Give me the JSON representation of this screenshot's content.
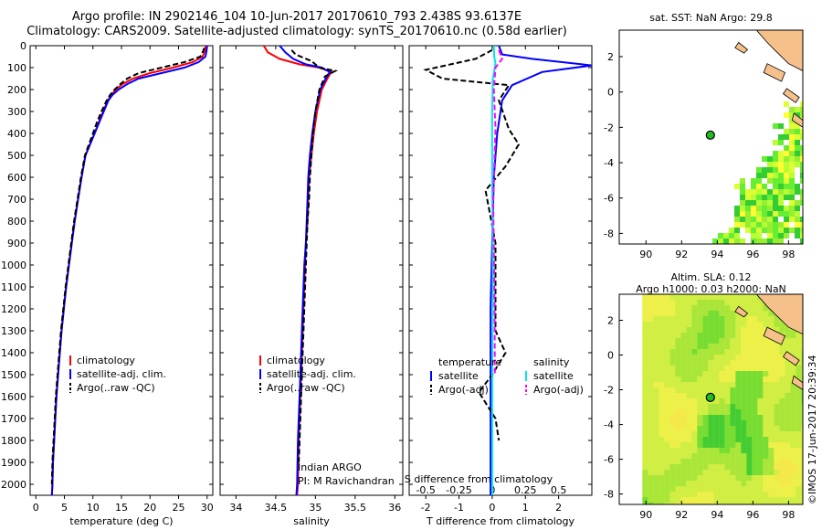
{
  "header": {
    "line1": "Argo profile: IN 2902146_104 10-Jun-2017 20170610_793 2.438S 93.6137E",
    "line2": "Climatology: CARS2009. Satellite-adjusted climatology: synTS_20170610.nc (0.58d earlier)"
  },
  "colors": {
    "climatology": "#ff0000",
    "satellite": "#0000ff",
    "argo": "#000000",
    "sal_satellite": "#00e5ee",
    "sal_argo": "#ff00ff",
    "land": "#f5c08a"
  },
  "chart_data": [
    {
      "type": "line",
      "name": "temperature",
      "xlabel": "temperature (deg C)",
      "ylabel": "",
      "xlim": [
        -1,
        31
      ],
      "ylim": [
        0,
        2050
      ],
      "y_inverted": true,
      "xticks": [
        0,
        5,
        10,
        15,
        20,
        25,
        30
      ],
      "yticks": [
        0,
        100,
        200,
        300,
        400,
        500,
        600,
        700,
        800,
        900,
        1000,
        1100,
        1200,
        1300,
        1400,
        1500,
        1600,
        1700,
        1800,
        1900,
        2000
      ],
      "legend": [
        "climatology",
        "satellite-adj. clim.",
        "Argo(..raw -QC)"
      ],
      "series": [
        {
          "name": "climatology",
          "color": "#ff0000",
          "dash": "",
          "points": [
            [
              29.8,
              0
            ],
            [
              29.6,
              25
            ],
            [
              29.2,
              50
            ],
            [
              27.5,
              75
            ],
            [
              24,
              100
            ],
            [
              20,
              125
            ],
            [
              17,
              150
            ],
            [
              15.2,
              175
            ],
            [
              14,
              200
            ],
            [
              13.2,
              225
            ],
            [
              12.6,
              250
            ],
            [
              11.8,
              300
            ],
            [
              11,
              350
            ],
            [
              10.3,
              400
            ],
            [
              9.5,
              450
            ],
            [
              8.7,
              500
            ],
            [
              8,
              600
            ],
            [
              7.4,
              700
            ],
            [
              6.8,
              800
            ],
            [
              6.3,
              900
            ],
            [
              5.8,
              1000
            ],
            [
              5.3,
              1100
            ],
            [
              4.9,
              1200
            ],
            [
              4.5,
              1300
            ],
            [
              4.2,
              1400
            ],
            [
              3.9,
              1500
            ],
            [
              3.6,
              1600
            ],
            [
              3.4,
              1700
            ],
            [
              3.2,
              1800
            ],
            [
              3,
              1900
            ],
            [
              2.9,
              2000
            ],
            [
              2.8,
              2050
            ]
          ]
        },
        {
          "name": "satellite-adj. clim.",
          "color": "#0000ff",
          "dash": "",
          "points": [
            [
              30,
              0
            ],
            [
              29.9,
              25
            ],
            [
              29.7,
              50
            ],
            [
              28.5,
              75
            ],
            [
              26,
              100
            ],
            [
              22,
              125
            ],
            [
              18,
              150
            ],
            [
              16,
              175
            ],
            [
              14.5,
              200
            ],
            [
              13.4,
              225
            ],
            [
              12.7,
              250
            ],
            [
              11.9,
              300
            ],
            [
              11.1,
              350
            ],
            [
              10.3,
              400
            ],
            [
              9.5,
              450
            ],
            [
              8.7,
              500
            ],
            [
              8,
              600
            ],
            [
              7.4,
              700
            ],
            [
              6.8,
              800
            ],
            [
              6.3,
              900
            ],
            [
              5.8,
              1000
            ],
            [
              5.3,
              1100
            ],
            [
              4.9,
              1200
            ],
            [
              4.5,
              1300
            ],
            [
              4.2,
              1400
            ],
            [
              3.9,
              1500
            ],
            [
              3.6,
              1600
            ],
            [
              3.4,
              1700
            ],
            [
              3.2,
              1800
            ],
            [
              3,
              1900
            ],
            [
              2.9,
              2000
            ],
            [
              2.8,
              2050
            ]
          ]
        },
        {
          "name": "Argo(..raw -QC)",
          "color": "#000000",
          "dash": "6,3",
          "points": [
            [
              29.5,
              10
            ],
            [
              29.3,
              25
            ],
            [
              28.8,
              50
            ],
            [
              26,
              75
            ],
            [
              22,
              100
            ],
            [
              18,
              125
            ],
            [
              16,
              150
            ],
            [
              14.8,
              175
            ],
            [
              13.8,
              200
            ],
            [
              13,
              225
            ],
            [
              12.4,
              250
            ],
            [
              11.5,
              300
            ],
            [
              10.7,
              350
            ],
            [
              10,
              400
            ],
            [
              9.3,
              450
            ],
            [
              8.6,
              500
            ],
            [
              7.9,
              600
            ],
            [
              7.3,
              700
            ],
            [
              6.7,
              800
            ],
            [
              6.2,
              900
            ],
            [
              5.7,
              1000
            ],
            [
              5.2,
              1100
            ],
            [
              4.8,
              1200
            ],
            [
              4.4,
              1300
            ],
            [
              4.1,
              1400
            ],
            [
              3.8,
              1500
            ],
            [
              3.5,
              1600
            ],
            [
              3.3,
              1700
            ],
            [
              3.1,
              1800
            ],
            [
              2.9,
              1900
            ],
            [
              2.8,
              2000
            ]
          ]
        }
      ]
    },
    {
      "type": "line",
      "name": "salinity",
      "xlabel": "salinity",
      "ylabel": "",
      "xlim": [
        33.8,
        36.1
      ],
      "ylim": [
        0,
        2050
      ],
      "y_inverted": true,
      "xticks": [
        34,
        34.5,
        35,
        35.5,
        36
      ],
      "xticklabels": [
        "34",
        "34.5",
        "35",
        "35.5",
        "36"
      ],
      "legend": [
        "climatology",
        "satellite-adj. clim.",
        "Argo(..raw -QC)"
      ],
      "annotation": [
        "Indian ARGO",
        "PI: M Ravichandran"
      ],
      "series": [
        {
          "name": "climatology",
          "color": "#ff0000",
          "dash": "",
          "points": [
            [
              34.35,
              0
            ],
            [
              34.4,
              30
            ],
            [
              34.55,
              60
            ],
            [
              34.8,
              85
            ],
            [
              35.05,
              100
            ],
            [
              35.2,
              120
            ],
            [
              35.15,
              150
            ],
            [
              35.08,
              200
            ],
            [
              35.02,
              300
            ],
            [
              34.98,
              400
            ],
            [
              34.95,
              500
            ],
            [
              34.92,
              600
            ],
            [
              34.91,
              700
            ],
            [
              34.9,
              800
            ],
            [
              34.88,
              900
            ],
            [
              34.87,
              1000
            ],
            [
              34.85,
              1200
            ],
            [
              34.83,
              1400
            ],
            [
              34.81,
              1600
            ],
            [
              34.79,
              1800
            ],
            [
              34.78,
              2000
            ],
            [
              34.77,
              2050
            ]
          ]
        },
        {
          "name": "satellite-adj. clim.",
          "color": "#0000ff",
          "dash": "",
          "points": [
            [
              34.55,
              0
            ],
            [
              34.62,
              30
            ],
            [
              34.72,
              60
            ],
            [
              34.88,
              85
            ],
            [
              35.08,
              100
            ],
            [
              35.18,
              120
            ],
            [
              35.13,
              150
            ],
            [
              35.06,
              200
            ],
            [
              35,
              300
            ],
            [
              34.96,
              400
            ],
            [
              34.93,
              500
            ],
            [
              34.91,
              600
            ],
            [
              34.9,
              700
            ],
            [
              34.89,
              800
            ],
            [
              34.88,
              900
            ],
            [
              34.86,
              1000
            ],
            [
              34.84,
              1200
            ],
            [
              34.82,
              1400
            ],
            [
              34.8,
              1600
            ],
            [
              34.78,
              1800
            ],
            [
              34.77,
              2000
            ],
            [
              34.76,
              2050
            ]
          ]
        },
        {
          "name": "Argo(..raw -QC)",
          "color": "#000000",
          "dash": "6,3",
          "points": [
            [
              34.7,
              20
            ],
            [
              34.75,
              40
            ],
            [
              34.95,
              70
            ],
            [
              35.05,
              100
            ],
            [
              35.25,
              115
            ],
            [
              35.12,
              140
            ],
            [
              35.05,
              200
            ],
            [
              35,
              300
            ],
            [
              34.97,
              400
            ],
            [
              34.95,
              500
            ],
            [
              34.93,
              600
            ],
            [
              34.92,
              700
            ],
            [
              34.9,
              800
            ],
            [
              34.89,
              900
            ],
            [
              34.88,
              1000
            ],
            [
              34.86,
              1200
            ],
            [
              34.84,
              1400
            ],
            [
              34.82,
              1600
            ],
            [
              34.8,
              1800
            ],
            [
              34.79,
              1900
            ]
          ]
        }
      ]
    },
    {
      "type": "line",
      "name": "difference",
      "xlabel": "T difference from climatology",
      "x2label": "S difference from climatology",
      "xlim": [
        -2.5,
        3
      ],
      "ylim": [
        0,
        2050
      ],
      "y_inverted": true,
      "xticks": [
        -2,
        -1,
        0,
        1,
        2
      ],
      "x2ticks": [
        -0.5,
        -0.25,
        0,
        0.25,
        0.5
      ],
      "x2ticklabels": [
        "-0.5",
        "-0.25",
        "0",
        "0.25",
        "0.5"
      ],
      "legend_title_t": "temperature",
      "legend_title_s": "salinity",
      "legend_t": [
        "satellite",
        "Argo(-adj)"
      ],
      "legend_s": [
        "satellite",
        "Argo(-adj)"
      ],
      "series": [
        {
          "name": "T satellite",
          "color": "#0000ff",
          "dash": "",
          "points": [
            [
              0.2,
              0
            ],
            [
              0.3,
              40
            ],
            [
              1.2,
              60
            ],
            [
              3,
              90
            ],
            [
              1.5,
              120
            ],
            [
              0.6,
              180
            ],
            [
              0.3,
              250
            ],
            [
              0.15,
              400
            ],
            [
              0.05,
              600
            ],
            [
              0,
              900
            ],
            [
              -0.05,
              1200
            ],
            [
              -0.05,
              1600
            ],
            [
              -0.05,
              2050
            ]
          ]
        },
        {
          "name": "T Argo(-adj)",
          "color": "#000000",
          "dash": "6,3",
          "points": [
            [
              0,
              20
            ],
            [
              -0.5,
              60
            ],
            [
              -2,
              110
            ],
            [
              -1.5,
              150
            ],
            [
              0.5,
              180
            ],
            [
              0.2,
              250
            ],
            [
              0.5,
              380
            ],
            [
              0.8,
              450
            ],
            [
              0.4,
              550
            ],
            [
              -0.2,
              660
            ],
            [
              0.1,
              900
            ],
            [
              0.1,
              1200
            ],
            [
              0.1,
              1300
            ],
            [
              0.4,
              1400
            ],
            [
              0,
              1500
            ],
            [
              -0.4,
              1580
            ],
            [
              0.1,
              1700
            ],
            [
              0.2,
              1800
            ]
          ]
        },
        {
          "name": "S satellite",
          "color": "#00e5ee",
          "dash": "",
          "points": [
            [
              0.05,
              0
            ],
            [
              0.06,
              50
            ],
            [
              0.1,
              80
            ],
            [
              0.02,
              150
            ],
            [
              0,
              300
            ],
            [
              0,
              600
            ],
            [
              0.02,
              1000
            ],
            [
              0,
              1500
            ],
            [
              0,
              2050
            ]
          ]
        },
        {
          "name": "S Argo(-adj)",
          "color": "#ff00ff",
          "dash": "6,3",
          "points": [
            [
              0.2,
              20
            ],
            [
              0.3,
              60
            ],
            [
              0.1,
              100
            ],
            [
              0.05,
              200
            ],
            [
              0.1,
              380
            ],
            [
              0.03,
              700
            ],
            [
              0.07,
              1200
            ],
            [
              0.08,
              1500
            ]
          ]
        }
      ]
    },
    {
      "type": "heatmap",
      "name": "sst_map",
      "title": "sat. SST: NaN Argo: 29.8",
      "xlim": [
        88.5,
        98.8
      ],
      "ylim": [
        -8.6,
        3.5
      ],
      "xticks": [
        90,
        92,
        94,
        96,
        98
      ],
      "yticks": [
        2,
        0,
        -2,
        -4,
        -6,
        -8
      ],
      "float_position": [
        93.6137,
        -2.438
      ]
    },
    {
      "type": "heatmap",
      "name": "sla_map",
      "title": "Altim. SLA: 0.12",
      "subtitle": "Argo h1000: 0.03 h2000: NaN",
      "xlim": [
        88.5,
        98.8
      ],
      "ylim": [
        -8.6,
        3.5
      ],
      "xticks": [
        90,
        92,
        94,
        96,
        98
      ],
      "yticks": [
        2,
        0,
        -2,
        -4,
        -6,
        -8
      ],
      "float_position": [
        93.6137,
        -2.438
      ]
    }
  ],
  "footer": {
    "credit": "©IMOS 17-Jun-2017 20:39:34"
  }
}
